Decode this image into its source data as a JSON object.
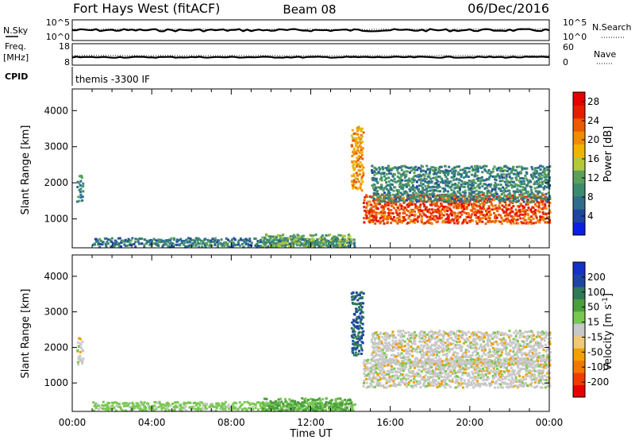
{
  "header": {
    "radar": "Fort Hays West (fitACF)",
    "beam": "Beam 08",
    "date": "06/Dec/2016"
  },
  "top_panels": {
    "nsky_label": "N.Sky",
    "nsearch_label": "N.Search",
    "noise_ticks": [
      "10^5",
      "10^0"
    ],
    "freq_label_1": "Freq.",
    "freq_label_2": "[MHz]",
    "nave_label": "Nave",
    "freq_ticks": [
      "18",
      "8"
    ],
    "nave_ticks": [
      "60",
      "0"
    ],
    "cpid_label": "CPID",
    "cpid_text": "themis -3300 IF"
  },
  "colors": {
    "power_scale": [
      "#0a1ee6",
      "#1e46a0",
      "#2e6e8c",
      "#3c8a6e",
      "#5aa05a",
      "#b4c83c",
      "#f0b400",
      "#f08c00",
      "#eb5a00",
      "#e61e00",
      "#e60000"
    ],
    "velocity_scale": [
      "#e60000",
      "#f03c00",
      "#f07800",
      "#f0a000",
      "#f0c878",
      "#c8c8c8",
      "#78c850",
      "#4aa03c",
      "#2e7a56",
      "#1e46a0",
      "#1432c8"
    ]
  },
  "chart_data": [
    {
      "type": "heatmap",
      "panel": "power",
      "ylabel": "Slant Range [km]",
      "yticks": [
        1000,
        2000,
        3000,
        4000
      ],
      "ylim": [
        200,
        4600
      ],
      "xlim": [
        0,
        24
      ],
      "colorbar_label": "Power [dB]",
      "colorbar_ticks": [
        4,
        8,
        12,
        16,
        20,
        24,
        28
      ],
      "colorbar_range": [
        0,
        30
      ],
      "regions": [
        {
          "t0": 0.2,
          "t1": 0.5,
          "r0": 1500,
          "r1": 2300,
          "v": 9
        },
        {
          "t0": 1.0,
          "t1": 14.2,
          "r0": 250,
          "r1": 500,
          "v": 8
        },
        {
          "t0": 9.5,
          "t1": 14.0,
          "r0": 250,
          "r1": 600,
          "v": 12
        },
        {
          "t0": 14.0,
          "t1": 14.6,
          "r0": 1800,
          "r1": 3600,
          "v": 20
        },
        {
          "t0": 14.6,
          "t1": 24.0,
          "r0": 900,
          "r1": 1700,
          "v": 24
        },
        {
          "t0": 15.0,
          "t1": 24.0,
          "r0": 1500,
          "r1": 2500,
          "v": 9
        }
      ]
    },
    {
      "type": "heatmap",
      "panel": "velocity",
      "ylabel": "Slant Range [km]",
      "yticks": [
        1000,
        2000,
        3000,
        4000
      ],
      "ylim": [
        200,
        4600
      ],
      "xlim": [
        0,
        24
      ],
      "xlabel": "Time UT",
      "xticks": [
        "00:00",
        "04:00",
        "08:00",
        "12:00",
        "16:00",
        "20:00",
        "00:00"
      ],
      "colorbar_label": "Velocity [m s",
      "colorbar_unit_sup": "-1",
      "colorbar_ticks": [
        -200,
        -100,
        -50,
        -15,
        15,
        50,
        100,
        200
      ],
      "regions": [
        {
          "t0": 0.2,
          "t1": 0.5,
          "r0": 1500,
          "r1": 2300,
          "v": 0
        },
        {
          "t0": 1.0,
          "t1": 14.2,
          "r0": 250,
          "r1": 500,
          "v": 30
        },
        {
          "t0": 9.5,
          "t1": 14.0,
          "r0": 250,
          "r1": 600,
          "v": 60
        },
        {
          "t0": 14.0,
          "t1": 14.6,
          "r0": 1800,
          "r1": 3600,
          "v": 200
        },
        {
          "t0": 14.6,
          "t1": 24.0,
          "r0": 900,
          "r1": 1700,
          "v": 0
        },
        {
          "t0": 15.0,
          "t1": 24.0,
          "r0": 1500,
          "r1": 2500,
          "v": 0
        }
      ]
    }
  ]
}
